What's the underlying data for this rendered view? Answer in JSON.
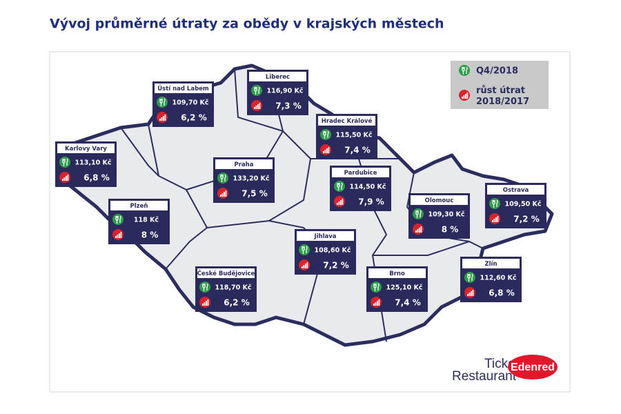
{
  "header": {
    "title": "Vývoj průměrné útraty za obědy v krajských městech"
  },
  "legend": {
    "spend": "Q4/2018",
    "growth": "růst útrat 2018/2017"
  },
  "cities": [
    {
      "name": "Ústí nad Labem",
      "spend": "109,70 Kč",
      "growth": "6,2 %"
    },
    {
      "name": "Liberec",
      "spend": "116,90 Kč",
      "growth": "7,3 %"
    },
    {
      "name": "Hradec Králové",
      "spend": "115,50 Kč",
      "growth": "7,4 %"
    },
    {
      "name": "Karlovy Vary",
      "spend": "113,10 Kč",
      "growth": "6,8 %"
    },
    {
      "name": "Praha",
      "spend": "133,20 Kč",
      "growth": "7,5 %"
    },
    {
      "name": "Pardubice",
      "spend": "114,50 Kč",
      "growth": "7,9 %"
    },
    {
      "name": "Olomouc",
      "spend": "109,30 Kč",
      "growth": "8 %"
    },
    {
      "name": "Ostrava",
      "spend": "109,50 Kč",
      "growth": "7,2 %"
    },
    {
      "name": "Plzeň",
      "spend": "118 Kč",
      "growth": "8 %"
    },
    {
      "name": "Jihlava",
      "spend": "108,60 Kč",
      "growth": "7,2 %"
    },
    {
      "name": "České Budějovice",
      "spend": "118,70 Kč",
      "growth": "6,2 %"
    },
    {
      "name": "Brno",
      "spend": "125,10 Kč",
      "growth": "7,4 %"
    },
    {
      "name": "Zlín",
      "spend": "112,60 Kč",
      "growth": "6,8 %"
    }
  ],
  "logo": {
    "line1": "Ticket",
    "line2": "Restaurant",
    "brand": "Edenred"
  }
}
